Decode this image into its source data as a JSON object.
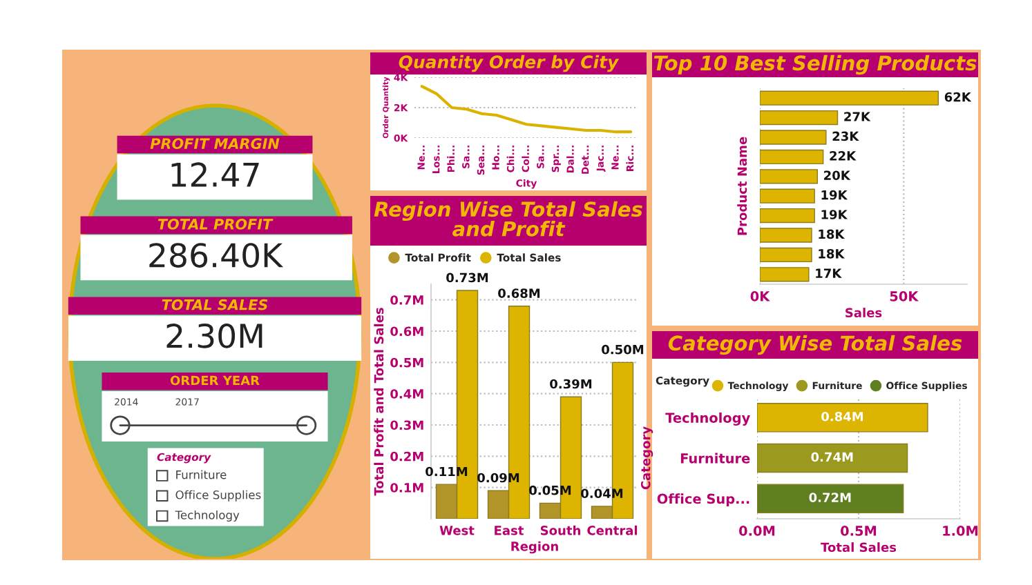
{
  "chart_data": [
    {
      "type": "other",
      "annotations": [
        "PROFIT MARGIN",
        "12.47",
        "TOTAL PROFIT",
        "286.40K",
        "TOTAL SALES",
        "2.30M",
        "ORDER YEAR",
        "2014",
        "2017",
        "Category",
        "Furniture",
        "Office Supplies",
        "Technology"
      ]
    },
    {
      "type": "line",
      "title": "Quantity Order by City",
      "xlabel": "City",
      "ylabel": "Order Quantity",
      "categories": [
        "Ne...",
        "Los...",
        "Phi...",
        "Sa...",
        "Sea...",
        "Ho...",
        "Chi...",
        "Col...",
        "Sa...",
        "Spr...",
        "Dal...",
        "Det...",
        "Jac...",
        "Ne...",
        "Ric..."
      ],
      "series": [
        {
          "color": "#d9b300",
          "values": [
            3400,
            2900,
            2000,
            1900,
            1600,
            1500,
            1200,
            900,
            800,
            700,
            600,
            500,
            500,
            400,
            400
          ]
        }
      ],
      "ylim": [
        0,
        4000
      ],
      "yticks": [
        {
          "value": 0,
          "label": "0K"
        },
        {
          "value": 2000,
          "label": "2K"
        },
        {
          "value": 4000,
          "label": "4K"
        }
      ],
      "grid": "y",
      "marker": "none",
      "line_style": "solid"
    },
    {
      "type": "bar",
      "title": "Region Wise Total Sales and Profit",
      "xlabel": "Region",
      "ylabel": "Total Profit and Total Sales",
      "categories": [
        "West",
        "East",
        "South",
        "Central"
      ],
      "series": [
        {
          "name": "Total Profit",
          "color": "#b39429",
          "values": [
            0.11,
            0.09,
            0.05,
            0.04
          ],
          "value_labels": [
            "0.11M",
            "0.09M",
            "0.05M",
            "0.04M"
          ]
        },
        {
          "name": "Total Sales",
          "color": "#ddb400",
          "values": [
            0.73,
            0.68,
            0.39,
            0.5
          ],
          "value_labels": [
            "0.73M",
            "0.68M",
            "0.39M",
            "0.50M"
          ]
        }
      ],
      "ylim": [
        0,
        0.75
      ],
      "yticks": [
        {
          "value": 0.1,
          "label": "0.1M"
        },
        {
          "value": 0.2,
          "label": "0.2M"
        },
        {
          "value": 0.3,
          "label": "0.3M"
        },
        {
          "value": 0.4,
          "label": "0.4M"
        },
        {
          "value": 0.5,
          "label": "0.5M"
        },
        {
          "value": 0.6,
          "label": "0.6M"
        },
        {
          "value": 0.7,
          "label": "0.7M"
        }
      ],
      "grid": "y",
      "legend": "top left"
    },
    {
      "type": "bar",
      "orientation": "horizontal",
      "title": "Top 10 Best Selling Products",
      "xlabel": "Sales",
      "ylabel": "Product Name",
      "categories": [
        null,
        null,
        null,
        null,
        null,
        null,
        null,
        null,
        null,
        null
      ],
      "values": [
        62,
        27,
        23,
        22,
        20,
        19,
        19,
        18,
        18,
        17
      ],
      "color": "#ddb400",
      "value_labels": [
        "62K",
        "27K",
        "23K",
        "22K",
        "20K",
        "19K",
        "19K",
        "18K",
        "18K",
        "17K"
      ],
      "xlim": [
        0,
        72
      ],
      "xticks": [
        {
          "value": 0,
          "label": "0K"
        },
        {
          "value": 50,
          "label": "50K"
        }
      ],
      "grid": "x"
    },
    {
      "type": "bar",
      "orientation": "horizontal",
      "title": "Category Wise Total Sales",
      "xlabel": "Total Sales",
      "ylabel": "Category",
      "legend_title": "Category",
      "categories": [
        "Technology",
        "Furniture",
        "Office Sup..."
      ],
      "stacked": true,
      "series": [
        {
          "name": "Technology",
          "color": "#ddb400",
          "values": [
            0.84,
            null,
            null
          ],
          "value_labels": [
            "0.84M",
            null,
            null
          ]
        },
        {
          "name": "Furniture",
          "color": "#9c9a1e",
          "values": [
            null,
            0.74,
            null
          ],
          "value_labels": [
            null,
            "0.74M",
            null
          ]
        },
        {
          "name": "Office Supplies",
          "color": "#5f7f20",
          "values": [
            null,
            null,
            0.72
          ],
          "value_labels": [
            null,
            null,
            "0.72M"
          ]
        }
      ],
      "xlim": [
        0,
        1.0
      ],
      "xticks": [
        {
          "value": 0,
          "label": "0.0M"
        },
        {
          "value": 0.5,
          "label": "0.5M"
        },
        {
          "value": 1.0,
          "label": "1.0M"
        }
      ],
      "grid": "x",
      "legend": "top left"
    }
  ]
}
